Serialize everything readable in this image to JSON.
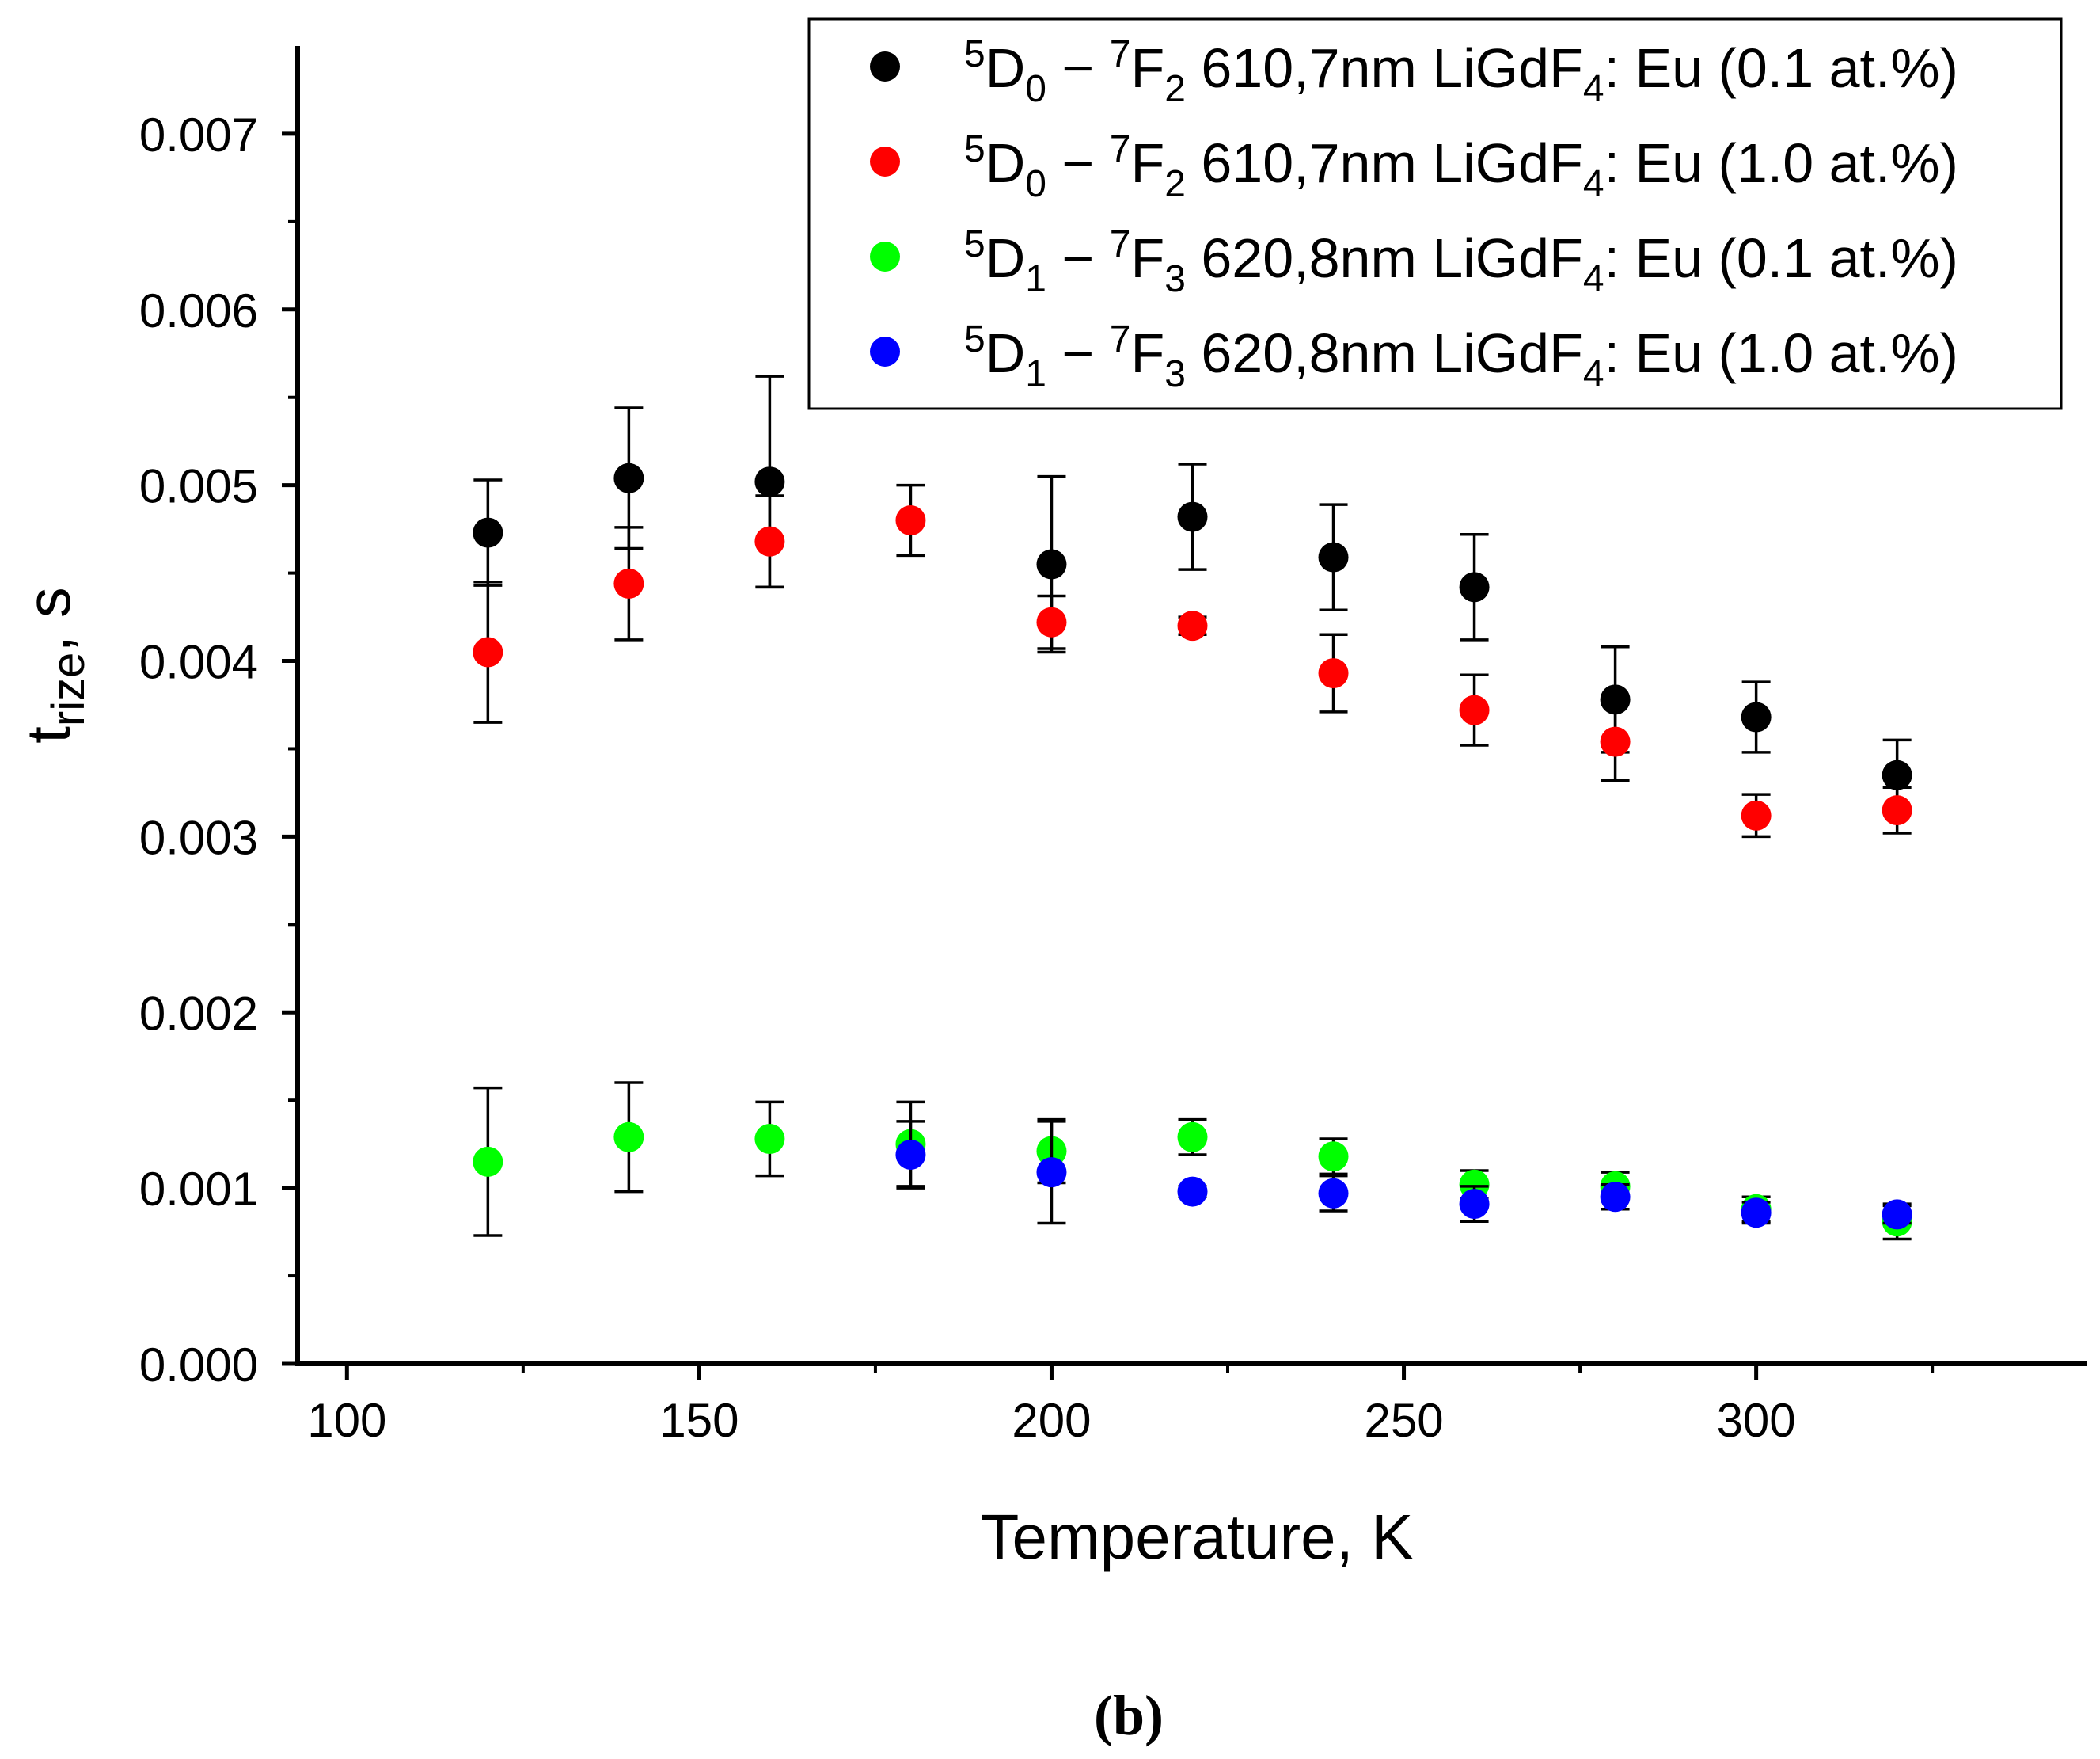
{
  "chart_data": {
    "type": "scatter",
    "title": "",
    "panel_label": "(b)",
    "xlabel": "Temperature, K",
    "ylabel": {
      "main": "t",
      "sub": "rize",
      "suffix": ", s"
    },
    "xlim": [
      93,
      347
    ],
    "ylim": [
      0,
      0.0075
    ],
    "x_ticks": [
      100,
      150,
      200,
      250,
      300
    ],
    "x_tick_labels": [
      "100",
      "150",
      "200",
      "250",
      "300"
    ],
    "x_minor_ticks": [
      125,
      175,
      225,
      275,
      325
    ],
    "y_ticks": [
      0,
      0.001,
      0.002,
      0.003,
      0.004,
      0.005,
      0.006,
      0.007
    ],
    "y_tick_labels": [
      "0.000",
      "0.001",
      "0.002",
      "0.003",
      "0.004",
      "0.005",
      "0.006",
      "0.007"
    ],
    "y_minor_ticks": [
      0.0005,
      0.0015,
      0.0025,
      0.0035,
      0.0045,
      0.0055,
      0.0065
    ],
    "legend_position": "top-right",
    "series": [
      {
        "name": "5D0 - 7F2 610,7nm LiGdF4: Eu (0.1 at.%)",
        "label_parts": {
          "t1_sup": "5",
          "t1": "D",
          "t1_sub": "0",
          "dash": " − ",
          "t2_sup": "7",
          "t2": "F",
          "t2_sub": "2",
          "rest1": " 610,7nm LiGdF",
          "rest_sub": "4",
          "rest2": ": Eu (0.1 at.%)"
        },
        "color": "#000000",
        "x": [
          120,
          140,
          160,
          200,
          220,
          240,
          260,
          280,
          300,
          320
        ],
        "y": [
          0.00473,
          0.00504,
          0.00502,
          0.00455,
          0.00482,
          0.00459,
          0.00442,
          0.00378,
          0.00368,
          0.00335
        ],
        "err": [
          0.0003,
          0.0004,
          0.0006,
          0.0005,
          0.0003,
          0.0003,
          0.0003,
          0.0003,
          0.0002,
          0.0002
        ]
      },
      {
        "name": "5D0 - 7F2 610,7nm LiGdF4: Eu (1.0 at.%)",
        "label_parts": {
          "t1_sup": "5",
          "t1": "D",
          "t1_sub": "0",
          "dash": " − ",
          "t2_sup": "7",
          "t2": "F",
          "t2_sub": "2",
          "rest1": " 610,7nm LiGdF",
          "rest_sub": "4",
          "rest2": ": Eu (1.0 at.%)"
        },
        "color": "#ff0000",
        "x": [
          120,
          140,
          160,
          180,
          200,
          220,
          240,
          260,
          280,
          300,
          320
        ],
        "y": [
          0.00405,
          0.00444,
          0.00468,
          0.0048,
          0.00422,
          0.0042,
          0.00393,
          0.00372,
          0.00354,
          0.00312,
          0.00315
        ],
        "err": [
          0.0004,
          0.00032,
          0.00026,
          0.0002,
          0.00015,
          5e-05,
          0.00022,
          0.0002,
          0.00022,
          0.00012,
          0.00013
        ]
      },
      {
        "name": "5D1 - 7F3 620,8nm LiGdF4: Eu (0.1 at.%)",
        "label_parts": {
          "t1_sup": "5",
          "t1": "D",
          "t1_sub": "1",
          "dash": " − ",
          "t2_sup": "7",
          "t2": "F",
          "t2_sub": "3",
          "rest1": " 620,8nm LiGdF",
          "rest_sub": "4",
          "rest2": ": Eu (0.1 at.%)"
        },
        "color": "#00ff00",
        "x": [
          120,
          140,
          160,
          180,
          200,
          220,
          240,
          260,
          280,
          300,
          320
        ],
        "y": [
          0.00115,
          0.00129,
          0.00128,
          0.00125,
          0.00121,
          0.00129,
          0.00118,
          0.00102,
          0.00101,
          0.00088,
          0.00081
        ],
        "err": [
          0.00042,
          0.00031,
          0.00021,
          0.00024,
          0.00018,
          0.0001,
          0.0001,
          8e-05,
          8e-05,
          7e-05,
          0.0001
        ]
      },
      {
        "name": "5D1 - 7F3 620,8nm LiGdF4: Eu (1.0 at.%)",
        "label_parts": {
          "t1_sup": "5",
          "t1": "D",
          "t1_sub": "1",
          "dash": " − ",
          "t2_sup": "7",
          "t2": "F",
          "t2_sub": "3",
          "rest1": " 620,8nm LiGdF",
          "rest_sub": "4",
          "rest2": ": Eu (1.0 at.%)"
        },
        "color": "#0000ff",
        "x": [
          180,
          200,
          220,
          240,
          260,
          280,
          300,
          320
        ],
        "y": [
          0.00119,
          0.00109,
          0.00098,
          0.00097,
          0.00091,
          0.00095,
          0.00086,
          0.00085
        ],
        "err": [
          0.00019,
          0.00029,
          3e-05,
          0.0001,
          0.0001,
          7e-05,
          6e-05,
          5e-05
        ]
      }
    ]
  }
}
